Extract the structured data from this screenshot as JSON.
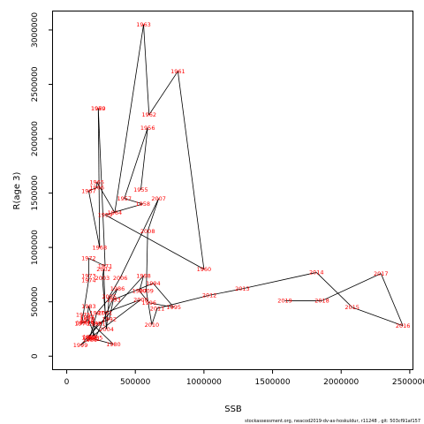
{
  "chart_data": {
    "type": "scatter",
    "xlabel": "SSB",
    "ylabel": "R(age 3)",
    "xlim": [
      -100000,
      2520000
    ],
    "ylim": [
      -120000,
      3170000
    ],
    "x_ticks": [
      0,
      500000,
      1000000,
      1500000,
      2000000,
      2500000
    ],
    "x_tick_labels": [
      "0",
      "500000",
      "1000000",
      "1500000",
      "2000000",
      "2500000"
    ],
    "y_ticks": [
      0,
      500000,
      1000000,
      1500000,
      2000000,
      2500000,
      3000000
    ],
    "y_tick_labels": [
      "0",
      "500000",
      "1000000",
      "1500000",
      "2000000",
      "2500000",
      "3000000"
    ],
    "grid": false,
    "connected_in_year_order": true,
    "label_color": "#ff0000",
    "line_color": "#000000",
    "points": [
      {
        "year": "1955",
        "x": 540000,
        "y": 1530000
      },
      {
        "year": "1956",
        "x": 590000,
        "y": 2100000
      },
      {
        "year": "1957",
        "x": 420000,
        "y": 1450000
      },
      {
        "year": "1958",
        "x": 555000,
        "y": 1400000
      },
      {
        "year": "1959",
        "x": 280000,
        "y": 1300000
      },
      {
        "year": "1960",
        "x": 1000000,
        "y": 800000
      },
      {
        "year": "1961",
        "x": 810000,
        "y": 2620000
      },
      {
        "year": "1962",
        "x": 600000,
        "y": 2220000
      },
      {
        "year": "1963",
        "x": 560000,
        "y": 3050000
      },
      {
        "year": "1964",
        "x": 350000,
        "y": 1320000
      },
      {
        "year": "1965",
        "x": 220000,
        "y": 1600000
      },
      {
        "year": "1966",
        "x": 220000,
        "y": 1550000
      },
      {
        "year": "1967",
        "x": 160000,
        "y": 1520000
      },
      {
        "year": "1968",
        "x": 240000,
        "y": 1000000
      },
      {
        "year": "1969",
        "x": 230000,
        "y": 2280000
      },
      {
        "year": "1970",
        "x": 230000,
        "y": 2280000
      },
      {
        "year": "1971",
        "x": 280000,
        "y": 830000
      },
      {
        "year": "1972",
        "x": 160000,
        "y": 900000
      },
      {
        "year": "1973",
        "x": 160000,
        "y": 740000
      },
      {
        "year": "1974",
        "x": 160000,
        "y": 700000
      },
      {
        "year": "1975",
        "x": 120000,
        "y": 380000
      },
      {
        "year": "1976",
        "x": 110000,
        "y": 300000
      },
      {
        "year": "1977",
        "x": 120000,
        "y": 310000
      },
      {
        "year": "1978",
        "x": 145000,
        "y": 320000
      },
      {
        "year": "1979",
        "x": 150000,
        "y": 340000
      },
      {
        "year": "1980",
        "x": 340000,
        "y": 110000
      },
      {
        "year": "1981",
        "x": 190000,
        "y": 160000
      },
      {
        "year": "1982",
        "x": 200000,
        "y": 300000
      },
      {
        "year": "1983",
        "x": 160000,
        "y": 460000
      },
      {
        "year": "1984",
        "x": 150000,
        "y": 360000
      },
      {
        "year": "1985",
        "x": 210000,
        "y": 170000
      },
      {
        "year": "1986",
        "x": 370000,
        "y": 620000
      },
      {
        "year": "1987",
        "x": 220000,
        "y": 400000
      },
      {
        "year": "1988",
        "x": 170000,
        "y": 180000
      },
      {
        "year": "1989",
        "x": 170000,
        "y": 150000
      },
      {
        "year": "1990",
        "x": 160000,
        "y": 170000
      },
      {
        "year": "1991",
        "x": 230000,
        "y": 300000
      },
      {
        "year": "1992",
        "x": 310000,
        "y": 340000
      },
      {
        "year": "1993",
        "x": 340000,
        "y": 520000
      },
      {
        "year": "1994",
        "x": 630000,
        "y": 670000
      },
      {
        "year": "1995",
        "x": 780000,
        "y": 450000
      },
      {
        "year": "1996",
        "x": 600000,
        "y": 490000
      },
      {
        "year": "1997",
        "x": 530000,
        "y": 600000
      },
      {
        "year": "1998",
        "x": 560000,
        "y": 740000
      },
      {
        "year": "1999",
        "x": 100000,
        "y": 100000
      },
      {
        "year": "2000",
        "x": 540000,
        "y": 520000
      },
      {
        "year": "2001",
        "x": 280000,
        "y": 400000
      },
      {
        "year": "2002",
        "x": 270000,
        "y": 800000
      },
      {
        "year": "2003",
        "x": 260000,
        "y": 720000
      },
      {
        "year": "2004",
        "x": 290000,
        "y": 250000
      },
      {
        "year": "2005",
        "x": 310000,
        "y": 550000
      },
      {
        "year": "2006",
        "x": 390000,
        "y": 720000
      },
      {
        "year": "2007",
        "x": 670000,
        "y": 1450000
      },
      {
        "year": "2008",
        "x": 590000,
        "y": 1150000
      },
      {
        "year": "2009",
        "x": 580000,
        "y": 600000
      },
      {
        "year": "2010",
        "x": 620000,
        "y": 290000
      },
      {
        "year": "2011",
        "x": 660000,
        "y": 440000
      },
      {
        "year": "2012",
        "x": 1040000,
        "y": 560000
      },
      {
        "year": "2013",
        "x": 1280000,
        "y": 620000
      },
      {
        "year": "2014",
        "x": 1820000,
        "y": 770000
      },
      {
        "year": "2015",
        "x": 2080000,
        "y": 450000
      },
      {
        "year": "2016",
        "x": 2450000,
        "y": 280000
      },
      {
        "year": "2017",
        "x": 2290000,
        "y": 760000
      },
      {
        "year": "2018",
        "x": 1860000,
        "y": 510000
      },
      {
        "year": "2019",
        "x": 1590000,
        "y": 510000
      }
    ]
  },
  "footer": {
    "text": "stockassessment.org, neacod2019-dv-as-hoskuldur, r11248 , git: 503cf91af157"
  }
}
